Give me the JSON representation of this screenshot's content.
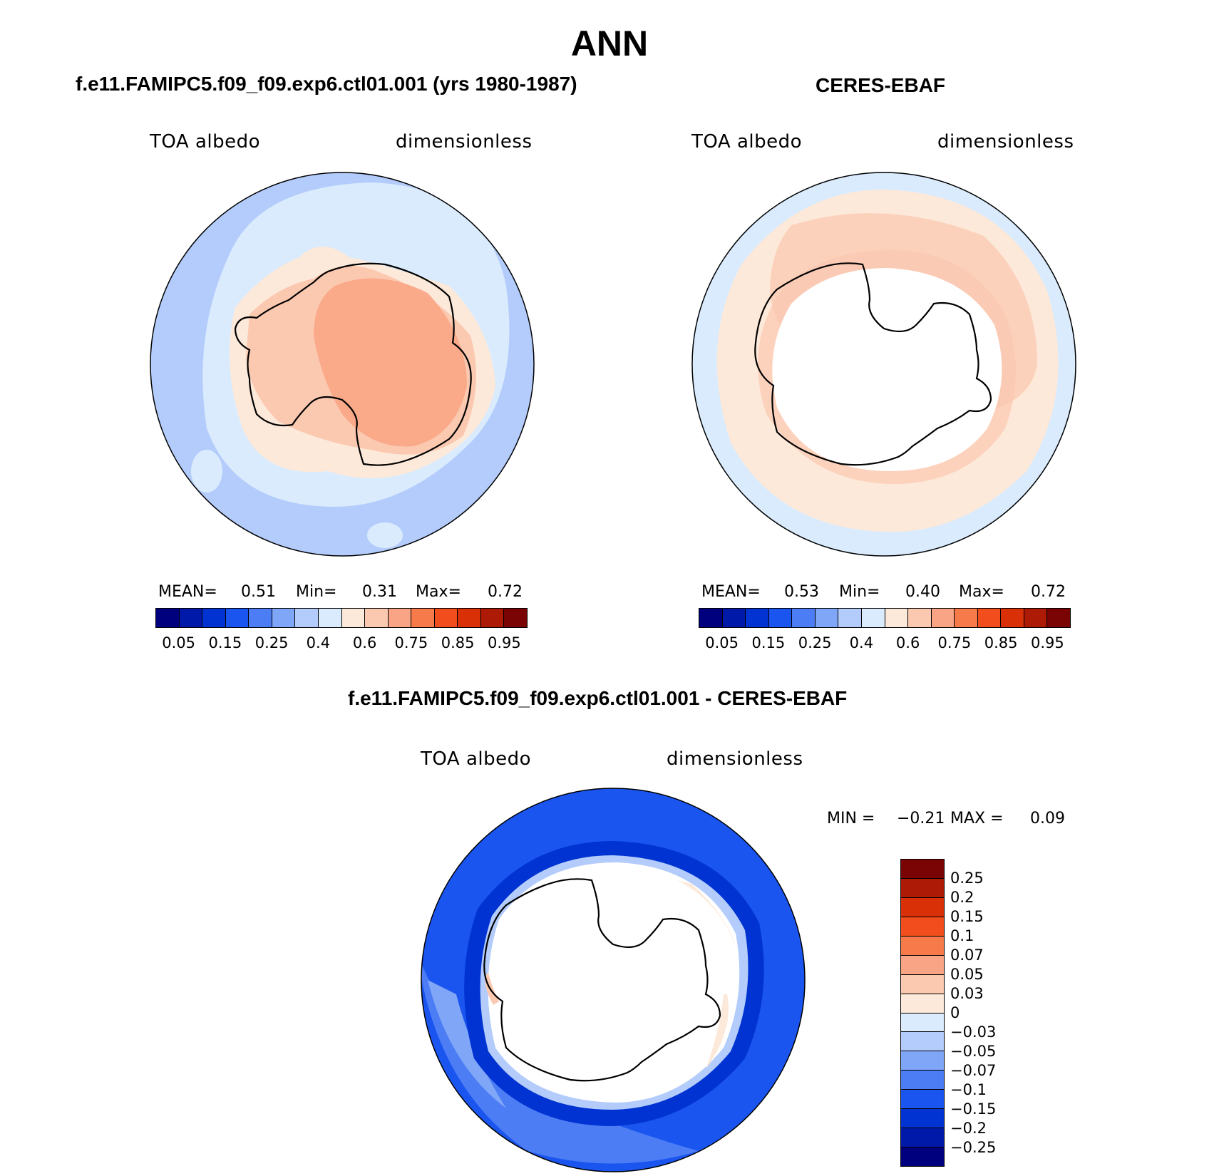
{
  "figure": {
    "title": "ANN"
  },
  "panels": {
    "model": {
      "title": "f.e11.FAMIPC5.f09_f09.exp6.ctl01.001 (yrs 1980-1987)",
      "var_label": "TOA albedo",
      "unit_label": "dimensionless",
      "stats": {
        "mean_label": "MEAN=",
        "mean": "0.51",
        "min_label": "Min=",
        "min": "0.31",
        "max_label": "Max=",
        "max": "0.72"
      },
      "colorbar_ticks": [
        "0.05",
        "0.15",
        "0.25",
        "0.4",
        "0.6",
        "0.75",
        "0.85",
        "0.95"
      ]
    },
    "obs": {
      "title": "CERES-EBAF",
      "var_label": "TOA albedo",
      "unit_label": "dimensionless",
      "stats": {
        "mean_label": "MEAN=",
        "mean": "0.53",
        "min_label": "Min=",
        "min": "0.40",
        "max_label": "Max=",
        "max": "0.72"
      },
      "colorbar_ticks": [
        "0.05",
        "0.15",
        "0.25",
        "0.4",
        "0.6",
        "0.75",
        "0.85",
        "0.95"
      ]
    },
    "diff": {
      "title": "f.e11.FAMIPC5.f09_f09.exp6.ctl01.001 - CERES-EBAF",
      "var_label": "TOA albedo",
      "unit_label": "dimensionless",
      "stats": {
        "min_label": "MIN =",
        "min": "−0.21",
        "max_label": "MAX =",
        "max": "0.09"
      },
      "colorbar_ticks": [
        "0.25",
        "0.2",
        "0.15",
        "0.1",
        "0.07",
        "0.05",
        "0.03",
        "0",
        "−0.03",
        "−0.05",
        "−0.07",
        "−0.1",
        "−0.15",
        "−0.2",
        "−0.25"
      ]
    }
  },
  "palettes": {
    "abs_colors": [
      "#00007f",
      "#0019a8",
      "#0033d1",
      "#1a55f0",
      "#4c7df5",
      "#80a6f8",
      "#b3ccfb",
      "#d9ebfd",
      "#fde9d9",
      "#fbc8b0",
      "#f9a585",
      "#f67a4a",
      "#f24d1c",
      "#d93008",
      "#ad1a05",
      "#7a0403"
    ],
    "diff_colors": [
      "#7a0403",
      "#ad1a05",
      "#d93008",
      "#f24d1c",
      "#f67a4a",
      "#f9a585",
      "#fbc8b0",
      "#fde9d9",
      "#d9ebfd",
      "#b3ccfb",
      "#80a6f8",
      "#4c7df5",
      "#1a55f0",
      "#0033d1",
      "#0019a8",
      "#00007f"
    ]
  }
}
